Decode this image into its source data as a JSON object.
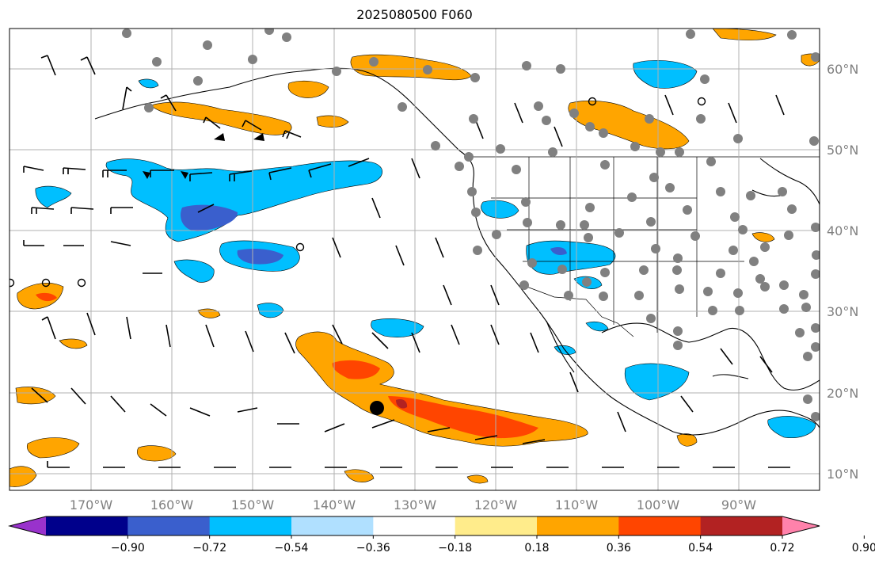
{
  "title": "2025080500 F060",
  "map": {
    "projection": "Plate Carree",
    "extent_lon": [
      -180,
      -80
    ],
    "extent_lat": [
      8,
      65
    ],
    "lat_labels": [
      "10°N",
      "20°N",
      "30°N",
      "40°N",
      "50°N",
      "60°N"
    ],
    "lat_values": [
      10,
      20,
      30,
      40,
      50,
      60
    ],
    "lon_labels": [
      "170°W",
      "160°W",
      "150°W",
      "140°W",
      "130°W",
      "120°W",
      "110°W",
      "100°W",
      "90°W"
    ],
    "lon_values": [
      -170,
      -160,
      -150,
      -140,
      -130,
      -120,
      -110,
      -100,
      -90
    ],
    "gridlines": true,
    "features": [
      "coastlines",
      "country borders",
      "US state borders"
    ],
    "overlays": [
      "filled contours",
      "wind barbs",
      "station markers"
    ]
  },
  "colorbar": {
    "ticks": [
      "−0.90",
      "−0.72",
      "−0.54",
      "−0.36",
      "−0.18",
      "0.18",
      "0.36",
      "0.54",
      "0.72",
      "0.90"
    ],
    "colors": [
      "#9932cc",
      "#00008b",
      "#3a5fcd",
      "#00bfff",
      "#b0e0ff",
      "#ffffff",
      "#ffec8b",
      "#ffa500",
      "#ff4500",
      "#b22222",
      "#ff82ab"
    ],
    "extend": "both"
  }
}
